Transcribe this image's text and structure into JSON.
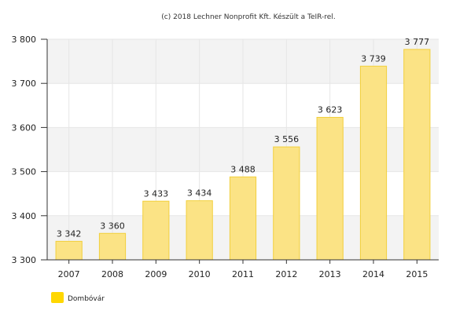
{
  "credit": "(c) 2018 Lechner Nonprofit Kft. Készült a TeIR-rel.",
  "colors": {
    "bar_fill": "#FBE385",
    "bar_stroke": "#F2CF3C",
    "legend_swatch": "#FFD700",
    "band_fill": "#F3F3F3",
    "grid": "#E6E6E6",
    "axis": "#333333"
  },
  "chart_data": {
    "type": "bar",
    "title": "",
    "xlabel": "",
    "ylabel": "",
    "categories": [
      "2007",
      "2008",
      "2009",
      "2010",
      "2011",
      "2012",
      "2013",
      "2014",
      "2015"
    ],
    "series": [
      {
        "name": "Dombóvár",
        "values": [
          3342,
          3360,
          3433,
          3434,
          3488,
          3556,
          3623,
          3739,
          3777
        ],
        "labels": [
          "3 342",
          "3 360",
          "3 433",
          "3 434",
          "3 488",
          "3 556",
          "3 623",
          "3 739",
          "3 777"
        ]
      }
    ],
    "ylim": [
      3300,
      3800
    ],
    "yticks": [
      3300,
      3400,
      3500,
      3600,
      3700,
      3800
    ],
    "ytick_labels": [
      "3 300",
      "3 400",
      "3 500",
      "3 600",
      "3 700",
      "3 800"
    ],
    "grid": true,
    "alternating_bands": true,
    "legend_position": "bottom-left"
  }
}
